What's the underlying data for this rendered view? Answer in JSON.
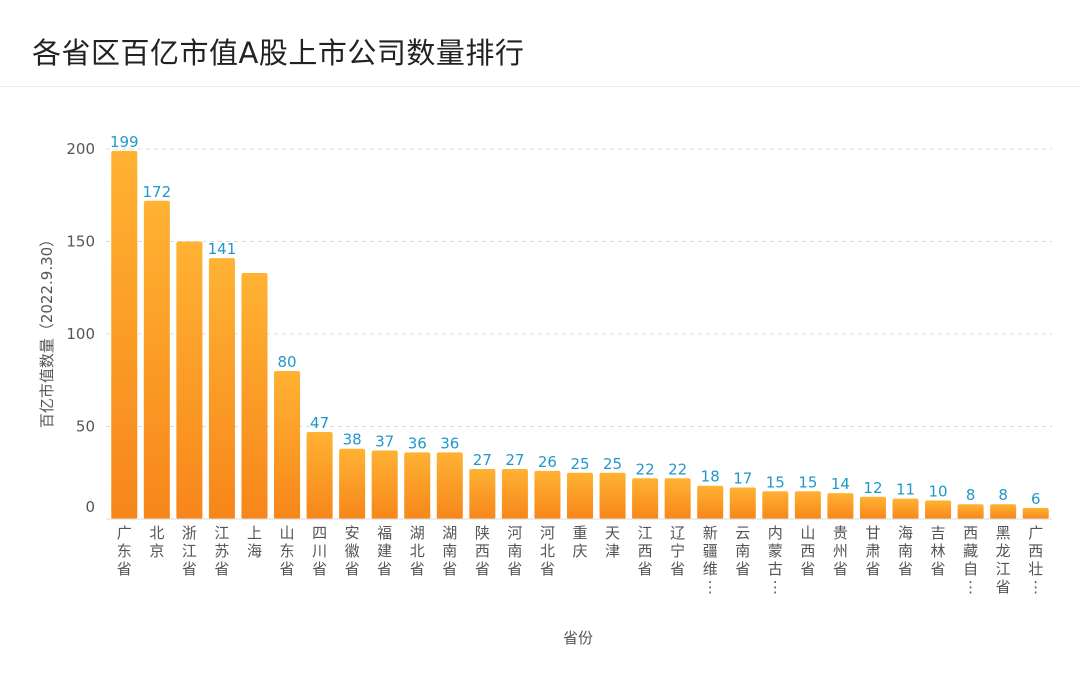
{
  "chart_data": {
    "type": "bar",
    "title": "各省区百亿市值A股上市公司数量排行",
    "xlabel": "省份",
    "ylabel": "百亿市值数量（2022.9.30）",
    "ylim": [
      0,
      200
    ],
    "yticks": [
      0,
      50,
      100,
      150,
      200
    ],
    "grid": true,
    "categories": [
      "广东省",
      "北京",
      "浙江省",
      "江苏省",
      "上海",
      "山东省",
      "四川省",
      "安徽省",
      "福建省",
      "湖北省",
      "湖南省",
      "陕西省",
      "河南省",
      "河北省",
      "重庆",
      "天津",
      "江西省",
      "辽宁省",
      "新疆维…",
      "云南省",
      "内蒙古…",
      "山西省",
      "贵州省",
      "甘肃省",
      "海南省",
      "吉林省",
      "西藏自…",
      "黑龙江省",
      "广西壮…"
    ],
    "values": [
      199,
      172,
      150,
      141,
      133,
      80,
      47,
      38,
      37,
      36,
      36,
      27,
      27,
      26,
      25,
      25,
      22,
      22,
      18,
      17,
      15,
      15,
      14,
      12,
      11,
      10,
      8,
      8,
      6
    ],
    "data_labels": [
      "199",
      "172",
      "",
      "141",
      "",
      "80",
      "47",
      "38",
      "37",
      "36",
      "36",
      "27",
      "27",
      "26",
      "25",
      "25",
      "22",
      "22",
      "18",
      "17",
      "15",
      "15",
      "14",
      "12",
      "11",
      "10",
      "8",
      "8",
      "6"
    ],
    "bar_color": "#f7931e",
    "label_color": "#1f98c9"
  }
}
